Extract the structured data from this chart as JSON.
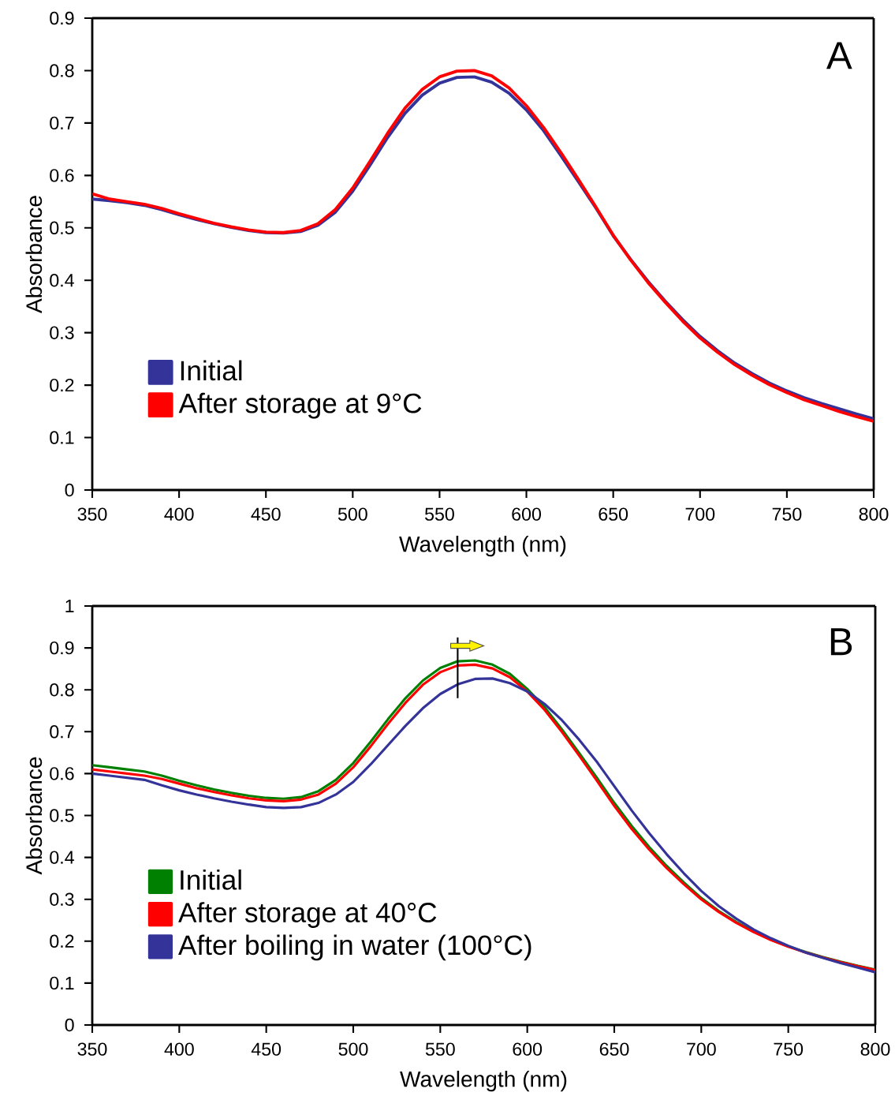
{
  "chart_data": [
    {
      "type": "line",
      "xlabel": "Wavelength (nm)",
      "ylabel": "Absorbance",
      "annotations": [
        "A"
      ],
      "legend": "bottom left",
      "xlim": [
        350,
        800
      ],
      "xticks": [
        350,
        400,
        450,
        500,
        550,
        600,
        650,
        700,
        750,
        800
      ],
      "ylim": [
        0,
        0.9
      ],
      "yticks": [
        0,
        0.1,
        0.2,
        0.3,
        0.4,
        0.5,
        0.6,
        0.7,
        0.8,
        0.9
      ],
      "x": [
        350,
        360,
        370,
        380,
        390,
        400,
        410,
        420,
        430,
        440,
        450,
        460,
        470,
        480,
        490,
        500,
        510,
        520,
        530,
        540,
        550,
        560,
        570,
        580,
        590,
        600,
        610,
        620,
        630,
        640,
        650,
        660,
        670,
        680,
        690,
        700,
        710,
        720,
        730,
        740,
        750,
        760,
        770,
        780,
        790,
        800
      ],
      "series": [
        {
          "name": "Initial",
          "color": "#333399",
          "values": [
            0.555,
            0.552,
            0.548,
            0.543,
            0.535,
            0.525,
            0.516,
            0.508,
            0.501,
            0.495,
            0.491,
            0.49,
            0.493,
            0.505,
            0.53,
            0.57,
            0.62,
            0.672,
            0.718,
            0.753,
            0.776,
            0.787,
            0.788,
            0.778,
            0.757,
            0.725,
            0.685,
            0.637,
            0.588,
            0.538,
            0.485,
            0.44,
            0.398,
            0.36,
            0.325,
            0.293,
            0.266,
            0.242,
            0.222,
            0.204,
            0.189,
            0.176,
            0.165,
            0.155,
            0.145,
            0.136
          ]
        },
        {
          "name": "After storage at 9°C",
          "color": "#ff0000",
          "values": [
            0.565,
            0.555,
            0.55,
            0.545,
            0.537,
            0.527,
            0.518,
            0.509,
            0.502,
            0.496,
            0.492,
            0.491,
            0.495,
            0.508,
            0.535,
            0.576,
            0.627,
            0.68,
            0.728,
            0.764,
            0.788,
            0.799,
            0.8,
            0.79,
            0.767,
            0.733,
            0.691,
            0.643,
            0.592,
            0.54,
            0.486,
            0.439,
            0.396,
            0.358,
            0.322,
            0.29,
            0.263,
            0.239,
            0.219,
            0.201,
            0.186,
            0.172,
            0.161,
            0.15,
            0.14,
            0.131
          ]
        }
      ]
    },
    {
      "type": "line",
      "xlabel": "Wavelength (nm)",
      "ylabel": "Absorbance",
      "annotations": [
        "B"
      ],
      "legend": "bottom left",
      "xlim": [
        350,
        800
      ],
      "xticks": [
        350,
        400,
        450,
        500,
        550,
        600,
        650,
        700,
        750,
        800
      ],
      "ylim": [
        0,
        1
      ],
      "yticks": [
        0,
        0.1,
        0.2,
        0.3,
        0.4,
        0.5,
        0.6,
        0.7,
        0.8,
        0.9,
        1
      ],
      "x": [
        350,
        360,
        370,
        380,
        390,
        400,
        410,
        420,
        430,
        440,
        450,
        460,
        470,
        480,
        490,
        500,
        510,
        520,
        530,
        540,
        550,
        560,
        570,
        580,
        590,
        600,
        610,
        620,
        630,
        640,
        650,
        660,
        670,
        680,
        690,
        700,
        710,
        720,
        730,
        740,
        750,
        760,
        770,
        780,
        790,
        800
      ],
      "series": [
        {
          "name": "Initial",
          "color": "#008000",
          "values": [
            0.62,
            0.615,
            0.61,
            0.605,
            0.595,
            0.583,
            0.572,
            0.562,
            0.554,
            0.547,
            0.542,
            0.54,
            0.544,
            0.558,
            0.585,
            0.625,
            0.676,
            0.73,
            0.78,
            0.822,
            0.852,
            0.868,
            0.87,
            0.86,
            0.838,
            0.802,
            0.758,
            0.705,
            0.648,
            0.59,
            0.53,
            0.475,
            0.425,
            0.38,
            0.34,
            0.303,
            0.272,
            0.246,
            0.223,
            0.204,
            0.188,
            0.174,
            0.162,
            0.151,
            0.141,
            0.132
          ]
        },
        {
          "name": "After storage at 40°C",
          "color": "#ff0000",
          "values": [
            0.61,
            0.605,
            0.6,
            0.595,
            0.587,
            0.576,
            0.565,
            0.556,
            0.548,
            0.541,
            0.536,
            0.534,
            0.538,
            0.55,
            0.576,
            0.615,
            0.665,
            0.719,
            0.769,
            0.812,
            0.842,
            0.858,
            0.86,
            0.851,
            0.83,
            0.796,
            0.752,
            0.699,
            0.642,
            0.583,
            0.523,
            0.468,
            0.419,
            0.375,
            0.336,
            0.3,
            0.27,
            0.244,
            0.222,
            0.203,
            0.187,
            0.173,
            0.161,
            0.15,
            0.14,
            0.131
          ]
        },
        {
          "name": "After boiling in water (100°C)",
          "color": "#333399",
          "values": [
            0.6,
            0.595,
            0.59,
            0.585,
            0.572,
            0.56,
            0.55,
            0.541,
            0.533,
            0.526,
            0.52,
            0.518,
            0.52,
            0.53,
            0.55,
            0.58,
            0.622,
            0.668,
            0.714,
            0.756,
            0.79,
            0.813,
            0.826,
            0.827,
            0.816,
            0.796,
            0.766,
            0.727,
            0.68,
            0.628,
            0.57,
            0.512,
            0.458,
            0.408,
            0.362,
            0.32,
            0.284,
            0.254,
            0.228,
            0.207,
            0.189,
            0.173,
            0.16,
            0.148,
            0.137,
            0.126
          ]
        }
      ]
    }
  ]
}
